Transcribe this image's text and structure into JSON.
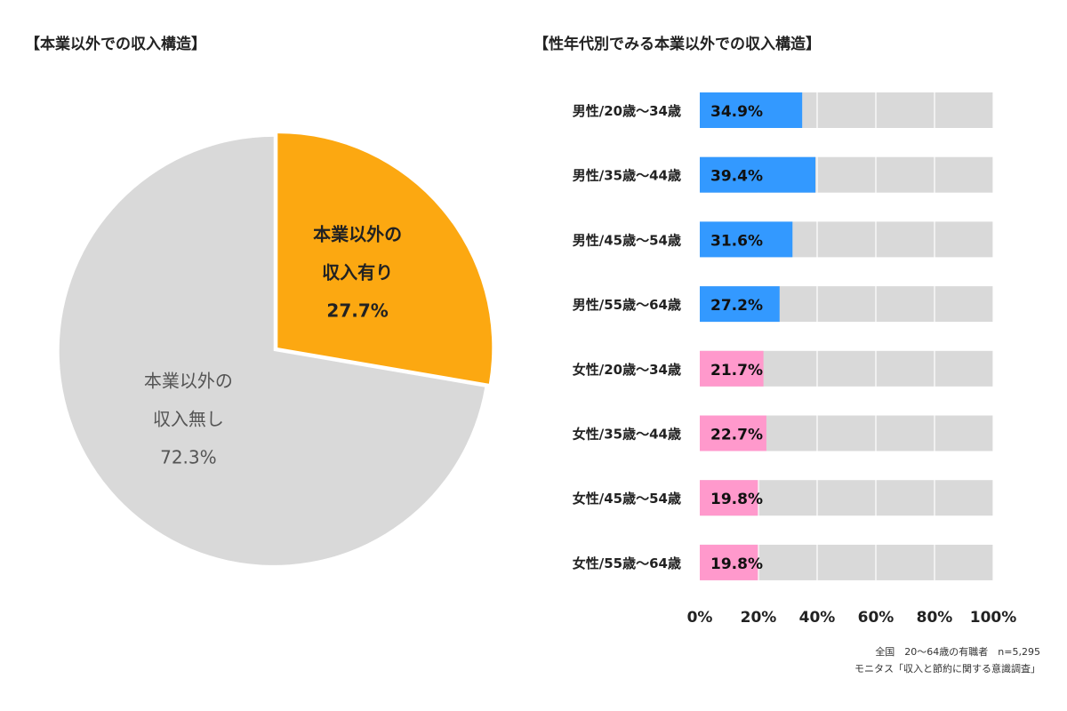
{
  "chart_data": [
    {
      "type": "pie",
      "title": "【本業以外での収入構造】",
      "slices": [
        {
          "label_lines": [
            "本業以外の",
            "収入有り"
          ],
          "value": 27.7,
          "value_label": "27.7%",
          "color": "#FCA811",
          "text_color": "#222222"
        },
        {
          "label_lines": [
            "本業以外の",
            "収入無し"
          ],
          "value": 72.3,
          "value_label": "72.3%",
          "color": "#D9D9D9",
          "text_color": "#555555"
        }
      ]
    },
    {
      "type": "bar",
      "orientation": "horizontal",
      "title": "【性年代別でみる本業以外での収入構造】",
      "categories": [
        "男性/20歳～34歳",
        "男性/35歳～44歳",
        "男性/45歳～54歳",
        "男性/55歳～64歳",
        "女性/20歳～34歳",
        "女性/35歳～44歳",
        "女性/45歳～54歳",
        "女性/55歳～64歳"
      ],
      "values": [
        34.9,
        39.4,
        31.6,
        27.2,
        21.7,
        22.7,
        19.8,
        19.8
      ],
      "value_labels": [
        "34.9%",
        "39.4%",
        "31.6%",
        "27.2%",
        "21.7%",
        "22.7%",
        "19.8%",
        "19.8%"
      ],
      "colors": [
        "#3399FF",
        "#3399FF",
        "#3399FF",
        "#3399FF",
        "#FF99CC",
        "#FF99CC",
        "#FF99CC",
        "#FF99CC"
      ],
      "background_color": "#D9D9D9",
      "xlim": [
        0,
        100
      ],
      "xticks": [
        0,
        20,
        40,
        60,
        80,
        100
      ],
      "xtick_labels": [
        "0%",
        "20%",
        "40%",
        "60%",
        "80%",
        "100%"
      ],
      "grid": true
    }
  ],
  "notes": [
    "全国　20～64歳の有職者　n=5,295",
    "モニタス「収入と節約に関する意識調査」"
  ]
}
